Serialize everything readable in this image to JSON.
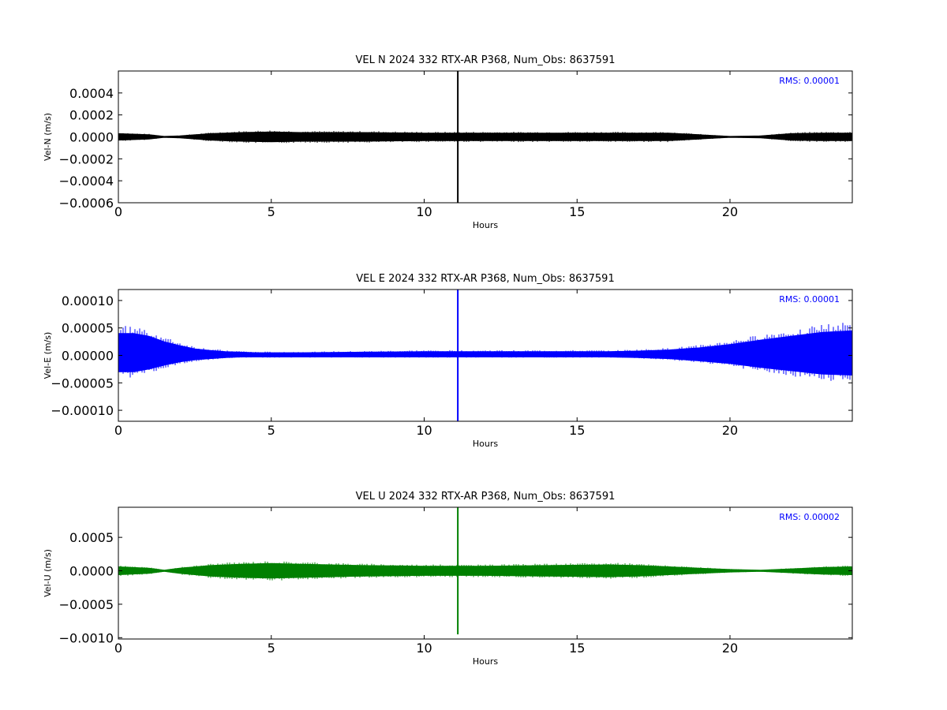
{
  "chart_data": [
    {
      "type": "line",
      "title": "VEL N 2024 332 RTX-AR  P368, Num_Obs: 8637591",
      "xlabel": "Hours",
      "ylabel": "Vel-N (m/s)",
      "xlim": [
        0,
        24
      ],
      "ylim": [
        -0.0006,
        0.0006
      ],
      "x_ticks": [
        0,
        5,
        10,
        15,
        20
      ],
      "x_tick_labels": [
        "0",
        "5",
        "10",
        "15",
        "20"
      ],
      "y_ticks": [
        -0.0006,
        -0.0004,
        -0.0002,
        0,
        0.0002,
        0.0004
      ],
      "y_tick_labels": [
        "−0.0006",
        "−0.0004",
        "−0.0002",
        "0.0000",
        "0.0002",
        "0.0004"
      ],
      "annotation": "RMS:  0.00001",
      "annotation_color": "#0000ff",
      "grid": false,
      "color": "#000000",
      "envelope": {
        "x": [
          0,
          1,
          1.5,
          2,
          3,
          4,
          5,
          6,
          8,
          10,
          12,
          14,
          16,
          18,
          19,
          20,
          21,
          22,
          23,
          24
        ],
        "y_max": [
          3e-05,
          2e-05,
          5e-06,
          1e-05,
          3e-05,
          4e-05,
          4.5e-05,
          4e-05,
          4e-05,
          3.5e-05,
          3.5e-05,
          3.5e-05,
          3.5e-05,
          3.5e-05,
          2e-05,
          5e-06,
          1e-05,
          3e-05,
          3.5e-05,
          3.5e-05
        ],
        "y_min": [
          -3e-05,
          -2e-05,
          -5e-06,
          -1e-05,
          -3e-05,
          -4e-05,
          -4.5e-05,
          -4e-05,
          -4e-05,
          -3.5e-05,
          -3.5e-05,
          -3.5e-05,
          -3.5e-05,
          -3.5e-05,
          -2e-05,
          -5e-06,
          -1e-05,
          -3e-05,
          -3.5e-05,
          -3.5e-05
        ]
      },
      "spike": {
        "x": 11.1,
        "y_max": 0.0006,
        "y_min": -0.0006
      }
    },
    {
      "type": "line",
      "title": "VEL E 2024 332 RTX-AR  P368, Num_Obs: 8637591",
      "xlabel": "Hours",
      "ylabel": "Vel-E (m/s)",
      "xlim": [
        0,
        24
      ],
      "ylim": [
        -0.00012,
        0.00012
      ],
      "x_ticks": [
        0,
        5,
        10,
        15,
        20
      ],
      "x_tick_labels": [
        "0",
        "5",
        "10",
        "15",
        "20"
      ],
      "y_ticks": [
        -0.0001,
        -5e-05,
        0,
        5e-05,
        0.0001
      ],
      "y_tick_labels": [
        "−0.00010",
        "−0.00005",
        "0.00000",
        "0.00005",
        "0.00010"
      ],
      "annotation": "RMS:  0.00001",
      "annotation_color": "#0000ff",
      "grid": false,
      "color": "#0000ff",
      "envelope": {
        "x": [
          0,
          0.5,
          1,
          1.5,
          2,
          2.5,
          3,
          3.5,
          4,
          4.5,
          6,
          8,
          10,
          12,
          14,
          16,
          17,
          18,
          19,
          20,
          21,
          22,
          23,
          24
        ],
        "y_max": [
          4e-05,
          4e-05,
          3.5e-05,
          2.5e-05,
          1.8e-05,
          1.2e-05,
          9e-06,
          7e-06,
          6e-06,
          5e-06,
          5e-06,
          6e-06,
          7e-06,
          7e-06,
          7e-06,
          7e-06,
          8e-06,
          1e-05,
          1.4e-05,
          2e-05,
          2.8e-05,
          3.5e-05,
          4.2e-05,
          4.5e-05
        ],
        "y_min": [
          -3e-05,
          -3e-05,
          -2.5e-05,
          -1.8e-05,
          -1.2e-05,
          -8e-06,
          -6e-06,
          -4e-06,
          -3e-06,
          -3e-06,
          -3e-06,
          -3e-06,
          -3e-06,
          -3e-06,
          -3e-06,
          -3e-06,
          -4e-06,
          -6e-06,
          -1e-05,
          -1.5e-05,
          -2.2e-05,
          -2.8e-05,
          -3.4e-05,
          -3.6e-05
        ]
      },
      "spike": {
        "x": 11.1,
        "y_max": 0.00012,
        "y_min": -0.00012
      }
    },
    {
      "type": "line",
      "title": "VEL U 2024 332 RTX-AR  P368, Num_Obs: 8637591",
      "xlabel": "Hours",
      "ylabel": "Vel-U (m/s)",
      "xlim": [
        0,
        24
      ],
      "ylim": [
        -0.00102,
        0.00095
      ],
      "x_ticks": [
        0,
        5,
        10,
        15,
        20
      ],
      "x_tick_labels": [
        "0",
        "5",
        "10",
        "15",
        "20"
      ],
      "y_ticks": [
        -0.001,
        -0.0005,
        0,
        0.0005
      ],
      "y_tick_labels": [
        "−0.0010",
        "−0.0005",
        "0.0000",
        "0.0005"
      ],
      "annotation": "RMS:  0.00002",
      "annotation_color": "#0000ff",
      "grid": false,
      "color": "#008000",
      "envelope": {
        "x": [
          0,
          1,
          1.5,
          2,
          3,
          4,
          5,
          6,
          8,
          10,
          12,
          14,
          16,
          17,
          18,
          19,
          20,
          21,
          22,
          23,
          24
        ],
        "y_max": [
          6e-05,
          4e-05,
          1e-05,
          4e-05,
          8e-05,
          0.0001,
          0.00011,
          0.0001,
          8e-05,
          7e-05,
          7e-05,
          8e-05,
          9e-05,
          8e-05,
          6e-05,
          4e-05,
          2e-05,
          1e-05,
          3e-05,
          5e-05,
          6e-05
        ],
        "y_min": [
          -6e-05,
          -4e-05,
          -1e-05,
          -4e-05,
          -8e-05,
          -0.0001,
          -0.00011,
          -0.0001,
          -8e-05,
          -7e-05,
          -7e-05,
          -8e-05,
          -9e-05,
          -8e-05,
          -6e-05,
          -4e-05,
          -2e-05,
          -1e-05,
          -3e-05,
          -5e-05,
          -6e-05
        ]
      },
      "spike": {
        "x": 11.1,
        "y_max": 0.00095,
        "y_min": -0.00095
      }
    }
  ]
}
